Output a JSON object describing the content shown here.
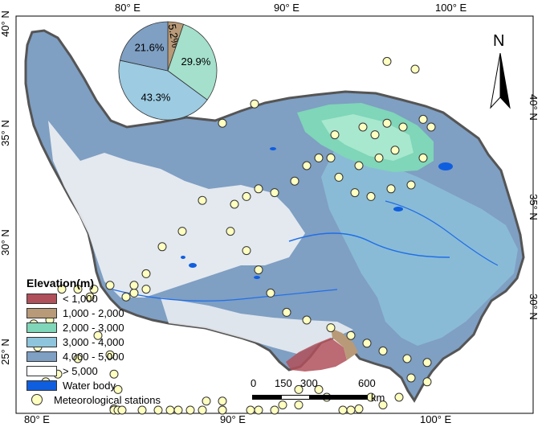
{
  "map": {
    "top_ticks": [
      "80° E",
      "90° E",
      "100° E"
    ],
    "bottom_ticks": [
      "80° E",
      "90° E",
      "100° E"
    ],
    "left_ticks": [
      "40° N",
      "35° N",
      "30° N",
      "25° N"
    ],
    "right_ticks": [
      "40° N",
      "35° N",
      "30° N"
    ]
  },
  "colors": {
    "lt1000": "#b0505a",
    "1000_2000": "#b89a78",
    "2000_3000": "#7fd6b8",
    "3000_4000": "#8ec4dc",
    "4000_5000": "#7f9fc3",
    "gt5000": "#ffffff",
    "water": "#0f5ee0",
    "station": "#ffffc0",
    "outline": "#555555"
  },
  "legend": {
    "title": "Elevation(m)",
    "items": [
      "< 1,000",
      "1,000 - 2,000",
      "2,000 - 3,000",
      "3,000 - 4,000",
      "4,000 - 5,000",
      "> 5,000",
      "Water body"
    ],
    "stations": "Meteorological stations"
  },
  "scale_bar": {
    "labels": [
      "0",
      "150",
      "300",
      "600"
    ],
    "unit": "km"
  },
  "north_arrow": {
    "label": "N"
  },
  "chart_data": {
    "type": "pie",
    "categories": [
      "1,000 - 2,000",
      "2,000 - 3,000",
      "3,000 - 4,000",
      "4,000 - 5,000"
    ],
    "values": [
      5.2,
      29.9,
      43.3,
      21.6
    ],
    "labels": [
      "5.2%",
      "29.9%",
      "43.3%",
      "21.6%"
    ],
    "colors": [
      "#b89a78",
      "#a4e0cc",
      "#9ccbe2",
      "#7f9fc3"
    ]
  },
  "stations": [
    [
      5,
      36
    ],
    [
      -3,
      31
    ],
    [
      -8,
      11
    ],
    [
      -13,
      3
    ],
    [
      -18,
      -1
    ],
    [
      -22,
      -8
    ],
    [
      -22,
      -12
    ],
    [
      -25,
      -13
    ],
    [
      -27,
      -14
    ],
    [
      -25,
      -11
    ],
    [
      -31,
      -11
    ],
    [
      -35,
      -12
    ],
    [
      -36,
      -14
    ],
    [
      -39,
      -12
    ],
    [
      -43,
      -12
    ],
    [
      -46,
      -18
    ],
    [
      -46,
      -20
    ],
    [
      -50,
      -21
    ],
    [
      -49,
      -27
    ],
    [
      -47,
      -36
    ],
    [
      -44,
      -34
    ],
    [
      -39,
      -30
    ],
    [
      -34,
      -24
    ],
    [
      -31,
      -29
    ],
    [
      -30,
      -34
    ],
    [
      -29,
      -38
    ],
    [
      -30,
      -43
    ],
    [
      -30,
      -48
    ],
    [
      -29,
      -51
    ],
    [
      -28,
      -57
    ],
    [
      -23,
      -60
    ],
    [
      -19,
      -62
    ],
    [
      -16,
      -62
    ],
    [
      -14,
      -52
    ],
    [
      -11,
      -48
    ],
    [
      -8,
      -46
    ],
    [
      -7,
      -41
    ],
    [
      -3,
      -41
    ],
    [
      -3,
      -48
    ],
    [
      -3,
      -53
    ],
    [
      4,
      -51
    ],
    [
      6,
      -48
    ],
    [
      10,
      -45
    ],
    [
      12,
      -42
    ],
    [
      16,
      -42
    ],
    [
      16,
      -38
    ],
    [
      21,
      -38
    ],
    [
      23,
      -40
    ],
    [
      27,
      -44
    ],
    [
      29,
      -48
    ],
    [
      31,
      -43
    ],
    [
      34,
      -40
    ],
    [
      37,
      -42
    ],
    [
      41,
      -40
    ],
    [
      44,
      -35
    ],
    [
      48,
      -36
    ],
    [
      48,
      -31
    ],
    [
      43,
      -30
    ],
    [
      37,
      -28
    ],
    [
      33,
      -26
    ],
    [
      29,
      -24
    ],
    [
      24,
      -22
    ],
    [
      18,
      -20
    ],
    [
      13,
      -18
    ],
    [
      9,
      -13
    ],
    [
      6,
      -7
    ],
    [
      3,
      -2
    ],
    [
      -1,
      3
    ],
    [
      0,
      10
    ],
    [
      3,
      12
    ],
    [
      6,
      14
    ],
    [
      10,
      13
    ],
    [
      15,
      16
    ],
    [
      18,
      20
    ],
    [
      21,
      22
    ],
    [
      24,
      22
    ],
    [
      25,
      28
    ],
    [
      32,
      30
    ],
    [
      35,
      28
    ],
    [
      38,
      31
    ],
    [
      42,
      30
    ],
    [
      47,
      32
    ],
    [
      40,
      24
    ],
    [
      36,
      22
    ],
    [
      31,
      20
    ],
    [
      26,
      17
    ],
    [
      30,
      13
    ],
    [
      34,
      12
    ],
    [
      39,
      14
    ],
    [
      44,
      15
    ],
    [
      47,
      22
    ],
    [
      49,
      30
    ],
    [
      45,
      45
    ],
    [
      38,
      47
    ]
  ]
}
